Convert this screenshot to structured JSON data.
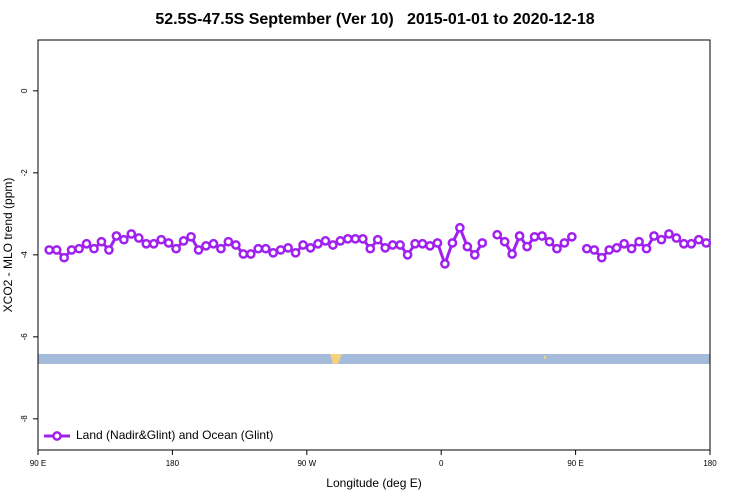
{
  "chart_data": {
    "type": "line",
    "title": "52.5S-47.5S September (Ver 10)   2015-01-01 to 2020-12-18",
    "x_label": "Longitude (deg E)",
    "y_label": "XCO2 - MLO trend (ppm)",
    "x": [
      97.5,
      102.5,
      107.5,
      112.5,
      117.5,
      122.5,
      127.5,
      132.5,
      137.5,
      142.5,
      147.5,
      152.5,
      157.5,
      162.5,
      167.5,
      172.5,
      177.5,
      182.5,
      187.5,
      192.5,
      197.5,
      202.5,
      207.5,
      212.5,
      217.5,
      222.5,
      227.5,
      232.5,
      237.5,
      242.5,
      247.5,
      252.5,
      257.5,
      262.5,
      267.5,
      272.5,
      277.5,
      282.5,
      287.5,
      292.5,
      297.5,
      302.5,
      307.5,
      312.5,
      317.5,
      322.5,
      327.5,
      332.5,
      337.5,
      342.5,
      347.5,
      352.5,
      357.5,
      362.5,
      367.5,
      372.5,
      377.5,
      382.5,
      387.5,
      392.5,
      397.5,
      402.5,
      407.5,
      412.5,
      417.5,
      422.5,
      427.5,
      432.5,
      437.5,
      442.5,
      447.5,
      452.5,
      457.5,
      462.5,
      467.5,
      472.5,
      477.5,
      482.5,
      487.5,
      492.5,
      497.5,
      502.5,
      507.5,
      512.5,
      517.5,
      522.5,
      527.5,
      532.5,
      537.5
    ],
    "series": [
      {
        "name": "Land (Nadir&Glint) and Ocean (Glint)",
        "color": "#a020f0",
        "values": [
          -3.88,
          -3.88,
          -4.07,
          -3.88,
          -3.85,
          -3.73,
          -3.85,
          -3.68,
          -3.88,
          -3.54,
          -3.63,
          -3.49,
          -3.59,
          -3.73,
          -3.73,
          -3.63,
          -3.71,
          -3.85,
          -3.66,
          -3.56,
          -3.88,
          -3.78,
          -3.73,
          -3.85,
          -3.68,
          -3.76,
          -3.98,
          -3.98,
          -3.85,
          -3.85,
          -3.95,
          -3.88,
          -3.83,
          -3.95,
          -3.76,
          -3.83,
          -3.73,
          -3.66,
          -3.76,
          -3.66,
          -3.61,
          -3.61,
          -3.61,
          -3.85,
          -3.63,
          -3.83,
          -3.76,
          -3.76,
          -4.0,
          -3.73,
          -3.73,
          -3.78,
          -3.71,
          -4.22,
          -3.71,
          -3.34,
          -3.8,
          -4.0,
          -3.71,
          null,
          -3.51,
          -3.68,
          -3.98,
          -3.54,
          -3.8,
          -3.56,
          -3.54,
          -3.68,
          -3.85,
          -3.71,
          -3.56,
          null,
          -3.85,
          -3.88,
          -4.07,
          -3.88,
          -3.83,
          -3.73,
          -3.85,
          -3.68,
          -3.85,
          -3.54,
          -3.63,
          -3.49,
          -3.59,
          -3.73,
          -3.73,
          -3.63,
          -3.71
        ]
      }
    ],
    "xlim": [
      90,
      540
    ],
    "xticks": [
      {
        "value": 90,
        "label": "90 E"
      },
      180,
      {
        "value": 270,
        "label": "90 W"
      },
      {
        "value": 360,
        "label": "0"
      },
      {
        "value": 450,
        "label": "90 E"
      },
      {
        "value": 540,
        "label": "180"
      }
    ],
    "ylim": [
      -8.76,
      1.24
    ],
    "yticks": [
      0,
      -2,
      -4,
      -6,
      -8
    ],
    "legend": "bottom-left"
  }
}
